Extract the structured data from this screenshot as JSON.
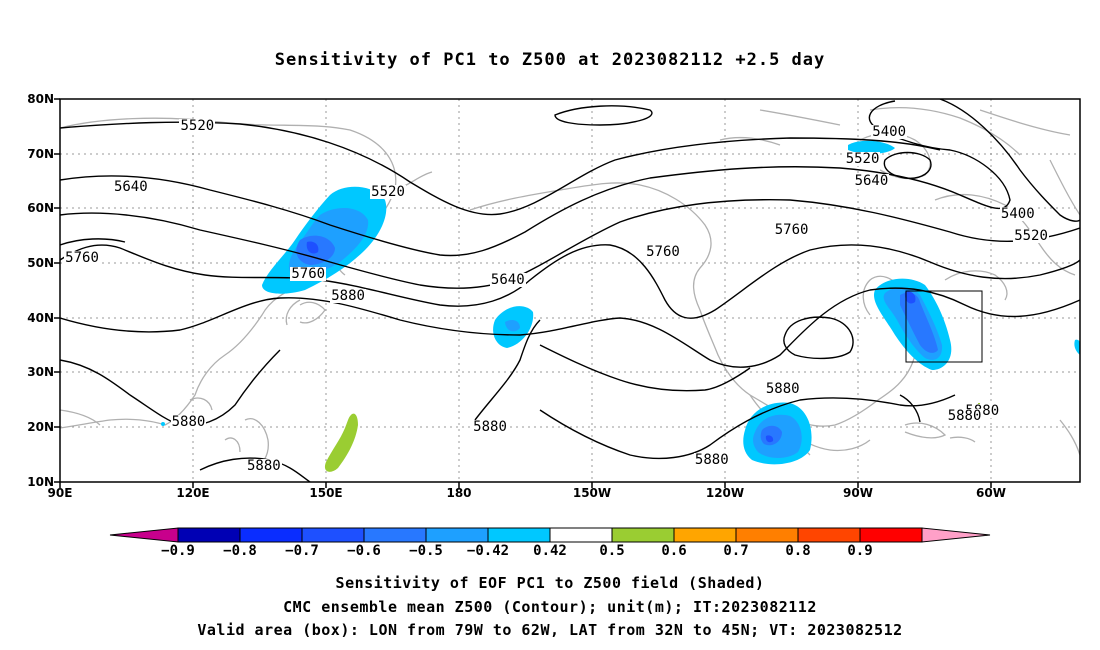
{
  "title": "Sensitivity of PC1 to Z500 at 2023082112 +2.5 day",
  "map": {
    "lat_labels": [
      "80N",
      "70N",
      "60N",
      "50N",
      "40N",
      "30N",
      "20N",
      "10N"
    ],
    "lon_labels": [
      "90E",
      "120E",
      "150E",
      "180",
      "150W",
      "120W",
      "90W",
      "60W"
    ],
    "extent": {
      "lon_min_east": 90,
      "lon_max_east": 320,
      "lat_min": 10,
      "lat_max": 80
    },
    "gridlines": "dotted",
    "coastline_color": "#b0b0b0",
    "contour_labels": [
      {
        "text": "5520",
        "lon": 121,
        "lat": 75
      },
      {
        "text": "5400",
        "lon": 277,
        "lat": 74
      },
      {
        "text": "5520",
        "lon": 271,
        "lat": 69
      },
      {
        "text": "5640",
        "lon": 106,
        "lat": 64
      },
      {
        "text": "5520",
        "lon": 164,
        "lat": 63
      },
      {
        "text": "5640",
        "lon": 273,
        "lat": 65
      },
      {
        "text": "5400",
        "lon": 306,
        "lat": 59
      },
      {
        "text": "5520",
        "lon": 309,
        "lat": 55
      },
      {
        "text": "5760",
        "lon": 95,
        "lat": 51
      },
      {
        "text": "5760",
        "lon": 226,
        "lat": 52
      },
      {
        "text": "5760",
        "lon": 255,
        "lat": 56
      },
      {
        "text": "5760",
        "lon": 146,
        "lat": 48
      },
      {
        "text": "5640",
        "lon": 191,
        "lat": 47
      },
      {
        "text": "5880",
        "lon": 155,
        "lat": 44
      },
      {
        "text": "5880",
        "lon": 253,
        "lat": 27
      },
      {
        "text": "5880",
        "lon": 298,
        "lat": 23
      },
      {
        "text": "5880",
        "lon": 294,
        "lat": 22
      },
      {
        "text": "5880",
        "lon": 119,
        "lat": 21
      },
      {
        "text": "5880",
        "lon": 187,
        "lat": 20
      },
      {
        "text": "5880",
        "lon": 237,
        "lat": 14
      },
      {
        "text": "5880",
        "lon": 136,
        "lat": 13
      }
    ],
    "valid_box": {
      "lon_w": 79,
      "lon_e": 62,
      "lat_s": 32,
      "lat_n": 45
    }
  },
  "colorbar": {
    "labels": [
      "−0.9",
      "−0.8",
      "−0.7",
      "−0.6",
      "−0.5",
      "−0.42",
      "0.42",
      "0.5",
      "0.6",
      "0.7",
      "0.8",
      "0.9"
    ],
    "colors": [
      "#0000b4",
      "#0a2dff",
      "#1e50ff",
      "#2878ff",
      "#1ea0ff",
      "#00c8ff",
      "#ffffff",
      "#9acd32",
      "#ffa500",
      "#ff7f00",
      "#ff4500",
      "#ff0000"
    ],
    "left_end_color": "#c8008c",
    "right_end_color": "#ffa0c8"
  },
  "captions": [
    "Sensitivity of EOF PC1 to Z500 field (Shaded)",
    "CMC ensemble mean Z500 (Contour); unit(m); IT:2023082112",
    "Valid area (box): LON from 79W to 62W, LAT from 32N to 45N; VT: 2023082512"
  ]
}
